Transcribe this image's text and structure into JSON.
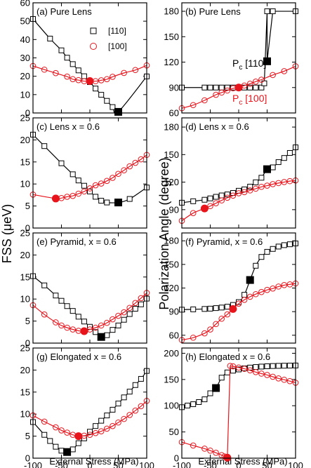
{
  "figure": {
    "ylabel_left": "FSS (μeV)",
    "ylabel_right": "Polarization Angle (degree)",
    "xlabel": "External Stress (MPa)"
  },
  "colors": {
    "series_110": "#000000",
    "series_100": "#e8141c"
  },
  "legend": {
    "series_110": "[110]",
    "series_100": "[100]",
    "placement": "top-right of panel (a)"
  },
  "pc_labels": {
    "p110": "P",
    "p110_sub": "c",
    "p110_tail": " [110]",
    "p100": "P",
    "p100_sub": "c",
    "p100_tail": " [100]"
  },
  "chart_data": [
    {
      "type": "line",
      "panel": "a",
      "label": "(a) Pure Lens",
      "xlim": [
        -100,
        100
      ],
      "ylim": [
        0,
        60
      ],
      "xticks": [
        -100,
        -50,
        0,
        50,
        100
      ],
      "yticks": [
        0,
        10,
        20,
        30,
        40,
        50,
        60
      ],
      "series": [
        {
          "name": "[110]",
          "x": [
            -100,
            -70,
            -50,
            -40,
            -30,
            -20,
            -10,
            0,
            10,
            20,
            30,
            40,
            100
          ],
          "y": [
            51.2,
            40.5,
            34.1,
            30.1,
            26.6,
            23.2,
            20.0,
            16.8,
            13.3,
            9.9,
            6.6,
            3.2,
            19.9
          ],
          "anti": {
            "x": 50,
            "y": 0.6
          }
        },
        {
          "name": "[100]",
          "x": [
            -100,
            -80,
            -60,
            -40,
            -30,
            -20,
            -10,
            10,
            20,
            30,
            40,
            60,
            80,
            100
          ],
          "y": [
            25.6,
            23.6,
            21.7,
            19.8,
            18.4,
            17.9,
            17.3,
            17.3,
            17.8,
            18.4,
            19.7,
            21.8,
            23.4,
            25.9
          ],
          "anti": {
            "x": 0,
            "y": 17.4
          }
        }
      ]
    },
    {
      "type": "line",
      "panel": "b",
      "label": "(b) Pure Lens",
      "xlim": [
        -100,
        100
      ],
      "ylim": [
        60,
        190
      ],
      "xticks": [
        -100,
        -50,
        0,
        50,
        100
      ],
      "yticks": [
        60,
        90,
        120,
        150,
        180
      ],
      "series": [
        {
          "name": "[110]",
          "x": [
            -100,
            -60,
            -50,
            -40,
            -30,
            -20,
            -10,
            0,
            10,
            20,
            30,
            40,
            45,
            50,
            60,
            100
          ],
          "y": [
            90,
            90,
            90,
            90,
            90,
            90,
            90,
            90,
            90,
            90,
            90,
            90,
            95,
            180,
            180,
            180
          ],
          "anti": {
            "x": 50,
            "y": 121
          }
        },
        {
          "name": "[100]",
          "x": [
            -100,
            -80,
            -60,
            -40,
            -30,
            -20,
            -10,
            10,
            20,
            30,
            40,
            60,
            80,
            100
          ],
          "y": [
            65.6,
            69.3,
            74.9,
            81.5,
            84.1,
            86.5,
            89.1,
            92.4,
            94.5,
            97.0,
            99.3,
            104.8,
            109.3,
            115.1
          ],
          "anti": {
            "x": 0,
            "y": 90
          }
        }
      ]
    },
    {
      "type": "line",
      "panel": "c",
      "label": "(c) Lens x = 0.6",
      "xlim": [
        -100,
        100
      ],
      "ylim": [
        0,
        25
      ],
      "xticks": [
        -100,
        -50,
        0,
        50,
        100
      ],
      "yticks": [
        0,
        5,
        10,
        15,
        20,
        25
      ],
      "series": [
        {
          "name": "[110]",
          "x": [
            -100,
            -80,
            -50,
            -30,
            -20,
            -10,
            0,
            10,
            20,
            30,
            70,
            100
          ],
          "y": [
            21.2,
            18.6,
            14.7,
            12.2,
            10.8,
            9.6,
            8.3,
            7.1,
            6.2,
            5.8,
            6.6,
            9.2
          ],
          "anti": {
            "x": 50,
            "y": 5.8
          }
        },
        {
          "name": "[100]",
          "x": [
            -100,
            -50,
            -40,
            -30,
            -20,
            -10,
            0,
            10,
            20,
            30,
            40,
            50,
            60,
            70,
            80,
            90,
            100
          ],
          "y": [
            7.6,
            6.8,
            7.1,
            7.3,
            7.8,
            8.3,
            9.0,
            9.7,
            10.1,
            10.7,
            11.4,
            12.3,
            13.1,
            14.0,
            14.8,
            15.6,
            16.6
          ],
          "anti": {
            "x": -60,
            "y": 6.7
          }
        }
      ]
    },
    {
      "type": "line",
      "panel": "d",
      "label": "(d) Lens x = 0.6",
      "xlim": [
        -100,
        100
      ],
      "ylim": [
        70,
        190
      ],
      "xticks": [
        -100,
        -50,
        0,
        50,
        100
      ],
      "yticks": [
        90,
        120,
        150,
        180
      ],
      "series": [
        {
          "name": "[110]",
          "x": [
            -100,
            -80,
            -60,
            -50,
            -40,
            -30,
            -20,
            -10,
            0,
            10,
            20,
            30,
            40,
            60,
            70,
            80,
            90,
            100
          ],
          "y": [
            97.6,
            99.2,
            100.8,
            102.3,
            104.0,
            105.5,
            106.6,
            108.2,
            110.6,
            112.1,
            115.1,
            119.8,
            124.8,
            136.1,
            141.8,
            146.3,
            151.8,
            157.9
          ],
          "anti": {
            "x": 50,
            "y": 134.1
          }
        },
        {
          "name": "[100]",
          "x": [
            -100,
            -80,
            -50,
            -40,
            -30,
            -20,
            -10,
            0,
            10,
            20,
            30,
            40,
            50,
            60,
            70,
            80,
            90,
            100
          ],
          "y": [
            77.9,
            86.3,
            93.9,
            97.0,
            100.1,
            103.0,
            105.3,
            107.9,
            109.1,
            111.0,
            112.9,
            114.9,
            116.2,
            117.8,
            119.0,
            120.1,
            121.1,
            121.8
          ],
          "anti": {
            "x": -60,
            "y": 91.3
          }
        }
      ]
    },
    {
      "type": "line",
      "panel": "e",
      "label": "(e) Pyramid, x = 0.6",
      "xlim": [
        -100,
        100
      ],
      "ylim": [
        0,
        25
      ],
      "xticks": [
        -100,
        -50,
        0,
        50,
        100
      ],
      "yticks": [
        0,
        5,
        10,
        15,
        20,
        25
      ],
      "series": [
        {
          "name": "[110]",
          "x": [
            -100,
            -80,
            -60,
            -50,
            -40,
            -30,
            -20,
            -10,
            0,
            10,
            30,
            40,
            50,
            60,
            70,
            80,
            90,
            100
          ],
          "y": [
            15.2,
            13.1,
            10.8,
            9.6,
            8.4,
            7.3,
            6.0,
            4.9,
            3.7,
            2.5,
            1.8,
            3.0,
            4.0,
            5.3,
            6.6,
            7.8,
            8.8,
            10.1
          ],
          "anti": {
            "x": 20,
            "y": 1.4
          }
        },
        {
          "name": "[100]",
          "x": [
            -100,
            -80,
            -60,
            -50,
            -40,
            -30,
            -20,
            0,
            10,
            20,
            30,
            40,
            50,
            60,
            70,
            80,
            90,
            100
          ],
          "y": [
            8.6,
            6.5,
            4.7,
            4.0,
            3.5,
            3.1,
            2.8,
            3.1,
            3.5,
            4.0,
            4.6,
            5.4,
            6.2,
            7.0,
            8.0,
            9.1,
            10.2,
            11.4
          ],
          "anti": {
            "x": -10,
            "y": 2.7
          }
        }
      ]
    },
    {
      "type": "line",
      "panel": "f",
      "label": "(f) Pyramid, x = 0.6",
      "xlim": [
        -100,
        100
      ],
      "ylim": [
        50,
        190
      ],
      "xticks": [
        -100,
        -50,
        0,
        50,
        100
      ],
      "yticks": [
        60,
        90,
        120,
        150,
        180
      ],
      "series": [
        {
          "name": "[110]",
          "x": [
            -100,
            -80,
            -60,
            -50,
            -40,
            -30,
            -20,
            -10,
            0,
            10,
            30,
            40,
            50,
            60,
            70,
            80,
            90,
            100
          ],
          "y": [
            92.5,
            92.9,
            93.4,
            93.8,
            94.5,
            95.2,
            96.3,
            98.5,
            102.1,
            111.4,
            148.3,
            159.5,
            166.0,
            169.7,
            172.7,
            174.5,
            175.6,
            176.7
          ],
          "anti": {
            "x": 20,
            "y": 130.2
          }
        },
        {
          "name": "[100]",
          "x": [
            -100,
            -80,
            -60,
            -50,
            -40,
            -30,
            -20,
            0,
            10,
            20,
            30,
            40,
            50,
            60,
            70,
            80,
            90,
            100
          ],
          "y": [
            54.0,
            56.9,
            62.4,
            67.3,
            74.2,
            81.0,
            86.5,
            100.1,
            105.0,
            108.9,
            112.2,
            114.9,
            117.6,
            119.4,
            121.9,
            123.7,
            124.6,
            125.8
          ],
          "anti": {
            "x": -10,
            "y": 93.4
          }
        }
      ]
    },
    {
      "type": "line",
      "panel": "g",
      "label": "(g) Elongated x = 0.6",
      "xlim": [
        -100,
        100
      ],
      "ylim": [
        0,
        25
      ],
      "xticks": [
        -100,
        -50,
        0,
        50,
        100
      ],
      "yticks": [
        0,
        5,
        10,
        15,
        20,
        25
      ],
      "series": [
        {
          "name": "[110]",
          "x": [
            -100,
            -80,
            -70,
            -60,
            -50,
            -30,
            -20,
            -10,
            0,
            10,
            20,
            30,
            40,
            50,
            60,
            70,
            80,
            90,
            100
          ],
          "y": [
            8.2,
            5.3,
            3.9,
            2.6,
            1.7,
            2.0,
            3.4,
            4.5,
            6.0,
            7.3,
            8.5,
            9.7,
            11.0,
            12.4,
            13.8,
            15.1,
            16.6,
            18.0,
            19.8
          ],
          "anti": {
            "x": -40,
            "y": 1.4
          }
        },
        {
          "name": "[100]",
          "x": [
            -100,
            -80,
            -60,
            -50,
            -40,
            -30,
            -10,
            0,
            10,
            20,
            30,
            40,
            50,
            60,
            70,
            80,
            90,
            100
          ],
          "y": [
            9.7,
            8.3,
            7.0,
            6.3,
            5.8,
            5.3,
            5.1,
            5.3,
            5.7,
            6.1,
            6.7,
            7.3,
            8.1,
            8.9,
            9.8,
            10.8,
            11.8,
            13.0
          ],
          "anti": {
            "x": -20,
            "y": 5.0
          }
        }
      ]
    },
    {
      "type": "line",
      "panel": "h",
      "label": "(h) Elongated x = 0.6",
      "xlim": [
        -100,
        100
      ],
      "ylim": [
        0,
        210
      ],
      "xticks": [
        -100,
        -50,
        0,
        50,
        100
      ],
      "yticks": [
        0,
        50,
        100,
        150,
        200
      ],
      "series": [
        {
          "name": "[110]",
          "x": [
            -100,
            -90,
            -80,
            -70,
            -60,
            -50,
            -30,
            -20,
            -10,
            0,
            10,
            20,
            30,
            40,
            50,
            60,
            70,
            80,
            90,
            100
          ],
          "y": [
            97.2,
            100.3,
            102.9,
            107.0,
            112.2,
            123.7,
            153.5,
            163.4,
            166.8,
            169.2,
            171.2,
            172.7,
            173.8,
            174.6,
            175.2,
            175.7,
            176.0,
            176.3,
            176.5,
            176.7
          ],
          "anti": {
            "x": -40,
            "y": 133.7
          }
        },
        {
          "name": "[100]",
          "x": [
            -100,
            -80,
            -60,
            -50,
            -40,
            -30,
            -25,
            -20,
            -15,
            -10,
            0,
            10,
            20,
            30,
            40,
            50,
            60,
            70,
            80,
            90,
            100
          ],
          "y": [
            30.6,
            24.2,
            18.2,
            14.4,
            10.3,
            5.8,
            3.3,
            0.0,
            175.9,
            175.1,
            172.8,
            170.4,
            167.5,
            164.1,
            161.2,
            158.6,
            155.2,
            152.1,
            149.5,
            146.9,
            143.9
          ],
          "anti": {
            "x": -20,
            "y": 1.0
          }
        }
      ]
    }
  ]
}
